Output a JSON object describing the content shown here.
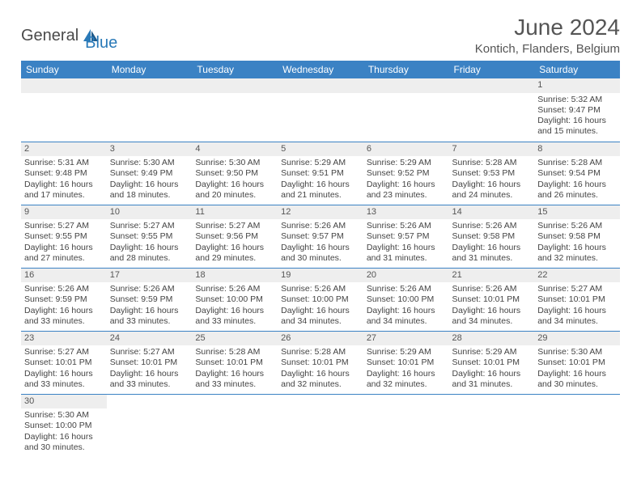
{
  "logo": {
    "general": "General",
    "blue": "Blue"
  },
  "title": "June 2024",
  "location": "Kontich, Flanders, Belgium",
  "colors": {
    "header_bg": "#3b82c4",
    "header_text": "#ffffff",
    "cell_border": "#3b82c4",
    "daynum_bg": "#eeeeee",
    "text": "#444444",
    "logo_gray": "#4a4a4a",
    "logo_blue": "#2a7ab8"
  },
  "weekdays": [
    "Sunday",
    "Monday",
    "Tuesday",
    "Wednesday",
    "Thursday",
    "Friday",
    "Saturday"
  ],
  "weeks": [
    [
      {
        "empty": true
      },
      {
        "empty": true
      },
      {
        "empty": true
      },
      {
        "empty": true
      },
      {
        "empty": true
      },
      {
        "empty": true
      },
      {
        "day": "1",
        "sunrise": "Sunrise: 5:32 AM",
        "sunset": "Sunset: 9:47 PM",
        "daylight": "Daylight: 16 hours and 15 minutes."
      }
    ],
    [
      {
        "day": "2",
        "sunrise": "Sunrise: 5:31 AM",
        "sunset": "Sunset: 9:48 PM",
        "daylight": "Daylight: 16 hours and 17 minutes."
      },
      {
        "day": "3",
        "sunrise": "Sunrise: 5:30 AM",
        "sunset": "Sunset: 9:49 PM",
        "daylight": "Daylight: 16 hours and 18 minutes."
      },
      {
        "day": "4",
        "sunrise": "Sunrise: 5:30 AM",
        "sunset": "Sunset: 9:50 PM",
        "daylight": "Daylight: 16 hours and 20 minutes."
      },
      {
        "day": "5",
        "sunrise": "Sunrise: 5:29 AM",
        "sunset": "Sunset: 9:51 PM",
        "daylight": "Daylight: 16 hours and 21 minutes."
      },
      {
        "day": "6",
        "sunrise": "Sunrise: 5:29 AM",
        "sunset": "Sunset: 9:52 PM",
        "daylight": "Daylight: 16 hours and 23 minutes."
      },
      {
        "day": "7",
        "sunrise": "Sunrise: 5:28 AM",
        "sunset": "Sunset: 9:53 PM",
        "daylight": "Daylight: 16 hours and 24 minutes."
      },
      {
        "day": "8",
        "sunrise": "Sunrise: 5:28 AM",
        "sunset": "Sunset: 9:54 PM",
        "daylight": "Daylight: 16 hours and 26 minutes."
      }
    ],
    [
      {
        "day": "9",
        "sunrise": "Sunrise: 5:27 AM",
        "sunset": "Sunset: 9:55 PM",
        "daylight": "Daylight: 16 hours and 27 minutes."
      },
      {
        "day": "10",
        "sunrise": "Sunrise: 5:27 AM",
        "sunset": "Sunset: 9:55 PM",
        "daylight": "Daylight: 16 hours and 28 minutes."
      },
      {
        "day": "11",
        "sunrise": "Sunrise: 5:27 AM",
        "sunset": "Sunset: 9:56 PM",
        "daylight": "Daylight: 16 hours and 29 minutes."
      },
      {
        "day": "12",
        "sunrise": "Sunrise: 5:26 AM",
        "sunset": "Sunset: 9:57 PM",
        "daylight": "Daylight: 16 hours and 30 minutes."
      },
      {
        "day": "13",
        "sunrise": "Sunrise: 5:26 AM",
        "sunset": "Sunset: 9:57 PM",
        "daylight": "Daylight: 16 hours and 31 minutes."
      },
      {
        "day": "14",
        "sunrise": "Sunrise: 5:26 AM",
        "sunset": "Sunset: 9:58 PM",
        "daylight": "Daylight: 16 hours and 31 minutes."
      },
      {
        "day": "15",
        "sunrise": "Sunrise: 5:26 AM",
        "sunset": "Sunset: 9:58 PM",
        "daylight": "Daylight: 16 hours and 32 minutes."
      }
    ],
    [
      {
        "day": "16",
        "sunrise": "Sunrise: 5:26 AM",
        "sunset": "Sunset: 9:59 PM",
        "daylight": "Daylight: 16 hours and 33 minutes."
      },
      {
        "day": "17",
        "sunrise": "Sunrise: 5:26 AM",
        "sunset": "Sunset: 9:59 PM",
        "daylight": "Daylight: 16 hours and 33 minutes."
      },
      {
        "day": "18",
        "sunrise": "Sunrise: 5:26 AM",
        "sunset": "Sunset: 10:00 PM",
        "daylight": "Daylight: 16 hours and 33 minutes."
      },
      {
        "day": "19",
        "sunrise": "Sunrise: 5:26 AM",
        "sunset": "Sunset: 10:00 PM",
        "daylight": "Daylight: 16 hours and 34 minutes."
      },
      {
        "day": "20",
        "sunrise": "Sunrise: 5:26 AM",
        "sunset": "Sunset: 10:00 PM",
        "daylight": "Daylight: 16 hours and 34 minutes."
      },
      {
        "day": "21",
        "sunrise": "Sunrise: 5:26 AM",
        "sunset": "Sunset: 10:01 PM",
        "daylight": "Daylight: 16 hours and 34 minutes."
      },
      {
        "day": "22",
        "sunrise": "Sunrise: 5:27 AM",
        "sunset": "Sunset: 10:01 PM",
        "daylight": "Daylight: 16 hours and 34 minutes."
      }
    ],
    [
      {
        "day": "23",
        "sunrise": "Sunrise: 5:27 AM",
        "sunset": "Sunset: 10:01 PM",
        "daylight": "Daylight: 16 hours and 33 minutes."
      },
      {
        "day": "24",
        "sunrise": "Sunrise: 5:27 AM",
        "sunset": "Sunset: 10:01 PM",
        "daylight": "Daylight: 16 hours and 33 minutes."
      },
      {
        "day": "25",
        "sunrise": "Sunrise: 5:28 AM",
        "sunset": "Sunset: 10:01 PM",
        "daylight": "Daylight: 16 hours and 33 minutes."
      },
      {
        "day": "26",
        "sunrise": "Sunrise: 5:28 AM",
        "sunset": "Sunset: 10:01 PM",
        "daylight": "Daylight: 16 hours and 32 minutes."
      },
      {
        "day": "27",
        "sunrise": "Sunrise: 5:29 AM",
        "sunset": "Sunset: 10:01 PM",
        "daylight": "Daylight: 16 hours and 32 minutes."
      },
      {
        "day": "28",
        "sunrise": "Sunrise: 5:29 AM",
        "sunset": "Sunset: 10:01 PM",
        "daylight": "Daylight: 16 hours and 31 minutes."
      },
      {
        "day": "29",
        "sunrise": "Sunrise: 5:30 AM",
        "sunset": "Sunset: 10:01 PM",
        "daylight": "Daylight: 16 hours and 30 minutes."
      }
    ],
    [
      {
        "day": "30",
        "sunrise": "Sunrise: 5:30 AM",
        "sunset": "Sunset: 10:00 PM",
        "daylight": "Daylight: 16 hours and 30 minutes."
      },
      {
        "empty": true
      },
      {
        "empty": true
      },
      {
        "empty": true
      },
      {
        "empty": true
      },
      {
        "empty": true
      },
      {
        "empty": true
      }
    ]
  ]
}
